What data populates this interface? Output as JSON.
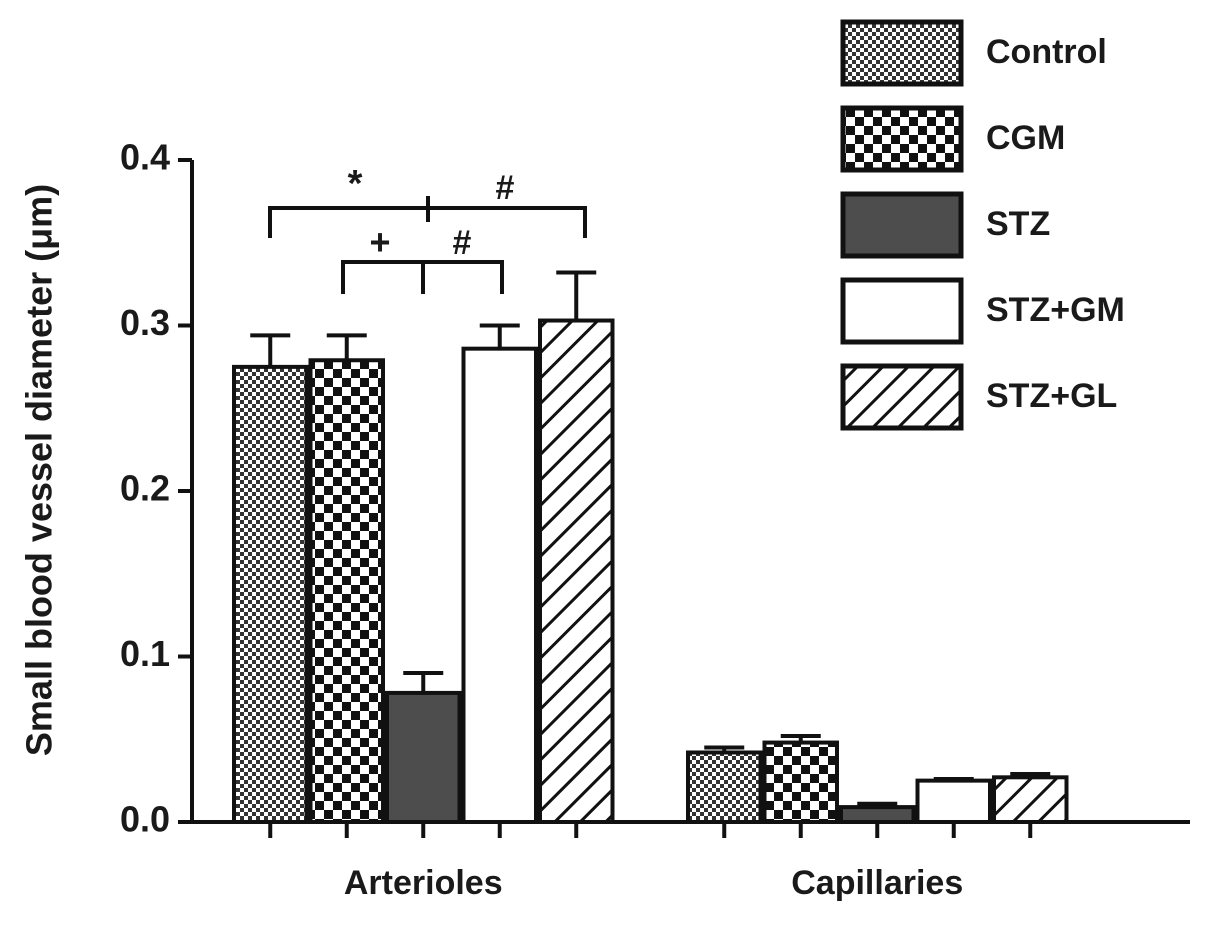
{
  "chart_data": {
    "type": "bar",
    "ylabel": "Small blood vessel diameter (μm)",
    "categories": [
      "Arterioles",
      "Capillaries"
    ],
    "series": [
      {
        "name": "Control",
        "color": "#ffffff",
        "pattern": "fine-checker",
        "values": [
          0.275,
          0.042
        ],
        "errors": [
          0.019,
          0.003
        ]
      },
      {
        "name": "CGM",
        "color": "#ffffff",
        "pattern": "checker",
        "values": [
          0.279,
          0.048
        ],
        "errors": [
          0.015,
          0.004
        ]
      },
      {
        "name": "STZ",
        "color": "#4d4d4d",
        "pattern": "solid",
        "values": [
          0.078,
          0.009
        ],
        "errors": [
          0.012,
          0.002
        ]
      },
      {
        "name": "STZ+GM",
        "color": "#ffffff",
        "pattern": "solid",
        "values": [
          0.286,
          0.025
        ],
        "errors": [
          0.014,
          0.001
        ]
      },
      {
        "name": "STZ+GL",
        "color": "#ffffff",
        "pattern": "hatch",
        "values": [
          0.303,
          0.027
        ],
        "errors": [
          0.029,
          0.002
        ]
      }
    ],
    "ylim": [
      0,
      0.4
    ],
    "yticks": [
      {
        "value": 0,
        "label": "0.0"
      },
      0.1,
      0.2,
      0.3,
      0.4
    ],
    "legend": "upper right",
    "annotations": [
      "*",
      "#",
      "+",
      "#"
    ]
  }
}
